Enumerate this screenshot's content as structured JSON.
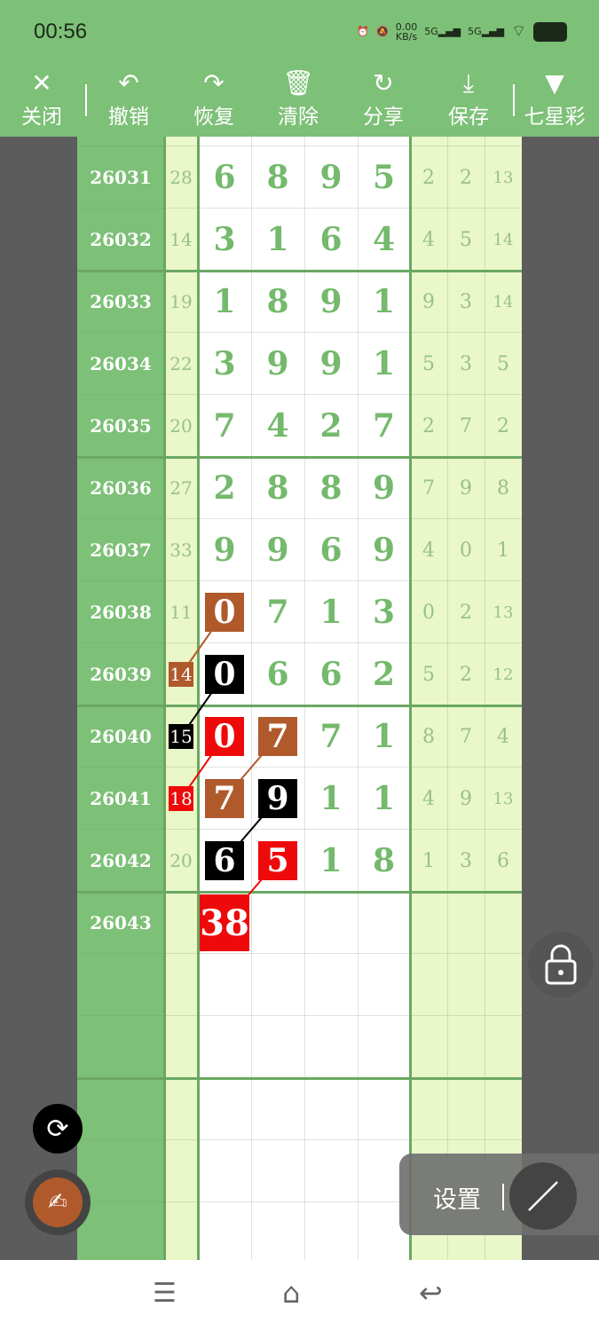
{
  "status": {
    "time": "00:56",
    "net_speed": "0.00",
    "net_unit": "KB/s",
    "sim1": "5G",
    "sim2": "5G"
  },
  "toolbar": [
    {
      "icon": "✕",
      "label": "关闭",
      "name": "close"
    },
    {
      "icon": "↶",
      "label": "撤销",
      "name": "undo"
    },
    {
      "icon": "↷",
      "label": "恢复",
      "name": "redo"
    },
    {
      "icon": "🗑",
      "label": "清除",
      "name": "clear"
    },
    {
      "icon": "↻",
      "label": "分享",
      "name": "share"
    },
    {
      "icon": "⤓",
      "label": "保存",
      "name": "save"
    },
    {
      "icon": "▼",
      "label": "七星彩",
      "name": "lottery-type"
    }
  ],
  "colors": {
    "brown": "#b05a2c",
    "black": "#000000",
    "red": "#ee0a0a",
    "header_green": "#7dc077"
  },
  "rows": [
    {
      "period": "26031",
      "sum": "28",
      "digits": [
        "6",
        "8",
        "9",
        "5"
      ],
      "extra": [
        "2",
        "2",
        "13"
      ]
    },
    {
      "period": "26032",
      "sum": "14",
      "digits": [
        "3",
        "1",
        "6",
        "4"
      ],
      "extra": [
        "4",
        "5",
        "14"
      ]
    },
    {
      "period": "26033",
      "sum": "19",
      "digits": [
        "1",
        "8",
        "9",
        "1"
      ],
      "extra": [
        "9",
        "3",
        "14"
      ]
    },
    {
      "period": "26034",
      "sum": "22",
      "digits": [
        "3",
        "9",
        "9",
        "1"
      ],
      "extra": [
        "5",
        "3",
        "5"
      ]
    },
    {
      "period": "26035",
      "sum": "20",
      "digits": [
        "7",
        "4",
        "2",
        "7"
      ],
      "extra": [
        "2",
        "7",
        "2"
      ]
    },
    {
      "period": "26036",
      "sum": "27",
      "digits": [
        "2",
        "8",
        "8",
        "9"
      ],
      "extra": [
        "7",
        "9",
        "8"
      ]
    },
    {
      "period": "26037",
      "sum": "33",
      "digits": [
        "9",
        "9",
        "6",
        "9"
      ],
      "extra": [
        "4",
        "0",
        "1"
      ]
    },
    {
      "period": "26038",
      "sum": "11",
      "digits": [
        "0",
        "7",
        "1",
        "3"
      ],
      "extra": [
        "0",
        "2",
        "13"
      ],
      "marks": {
        "d0": "brown"
      }
    },
    {
      "period": "26039",
      "sum": "14",
      "digits": [
        "0",
        "6",
        "6",
        "2"
      ],
      "extra": [
        "5",
        "2",
        "12"
      ],
      "marks": {
        "sum": "brown",
        "d0": "black"
      }
    },
    {
      "period": "26040",
      "sum": "15",
      "digits": [
        "0",
        "7",
        "7",
        "1"
      ],
      "extra": [
        "8",
        "7",
        "4"
      ],
      "marks": {
        "sum": "black",
        "d0": "red",
        "d1": "brown"
      }
    },
    {
      "period": "26041",
      "sum": "18",
      "digits": [
        "7",
        "9",
        "1",
        "1"
      ],
      "extra": [
        "4",
        "9",
        "13"
      ],
      "marks": {
        "sum": "red",
        "d0": "brown",
        "d1": "black"
      }
    },
    {
      "period": "26042",
      "sum": "20",
      "digits": [
        "6",
        "5",
        "1",
        "8"
      ],
      "extra": [
        "1",
        "3",
        "6"
      ],
      "marks": {
        "d0": "black",
        "d1": "red"
      }
    },
    {
      "period": "26043",
      "sum": "",
      "digits": [
        "38",
        "",
        "",
        ""
      ],
      "extra": [
        "",
        "",
        ""
      ],
      "marks": {
        "d0": "red"
      }
    }
  ],
  "links": [
    {
      "from": [
        7,
        "d0"
      ],
      "to": [
        8,
        "sum"
      ],
      "color": "brown"
    },
    {
      "from": [
        8,
        "d0"
      ],
      "to": [
        9,
        "sum"
      ],
      "color": "black"
    },
    {
      "from": [
        9,
        "d0"
      ],
      "to": [
        10,
        "sum"
      ],
      "color": "red"
    },
    {
      "from": [
        9,
        "d1"
      ],
      "to": [
        10,
        "d0"
      ],
      "color": "brown"
    },
    {
      "from": [
        10,
        "d1"
      ],
      "to": [
        11,
        "d0"
      ],
      "color": "black"
    },
    {
      "from": [
        11,
        "d1"
      ],
      "to": [
        12,
        "d0"
      ],
      "color": "red"
    }
  ],
  "settings": {
    "label": "设置"
  }
}
